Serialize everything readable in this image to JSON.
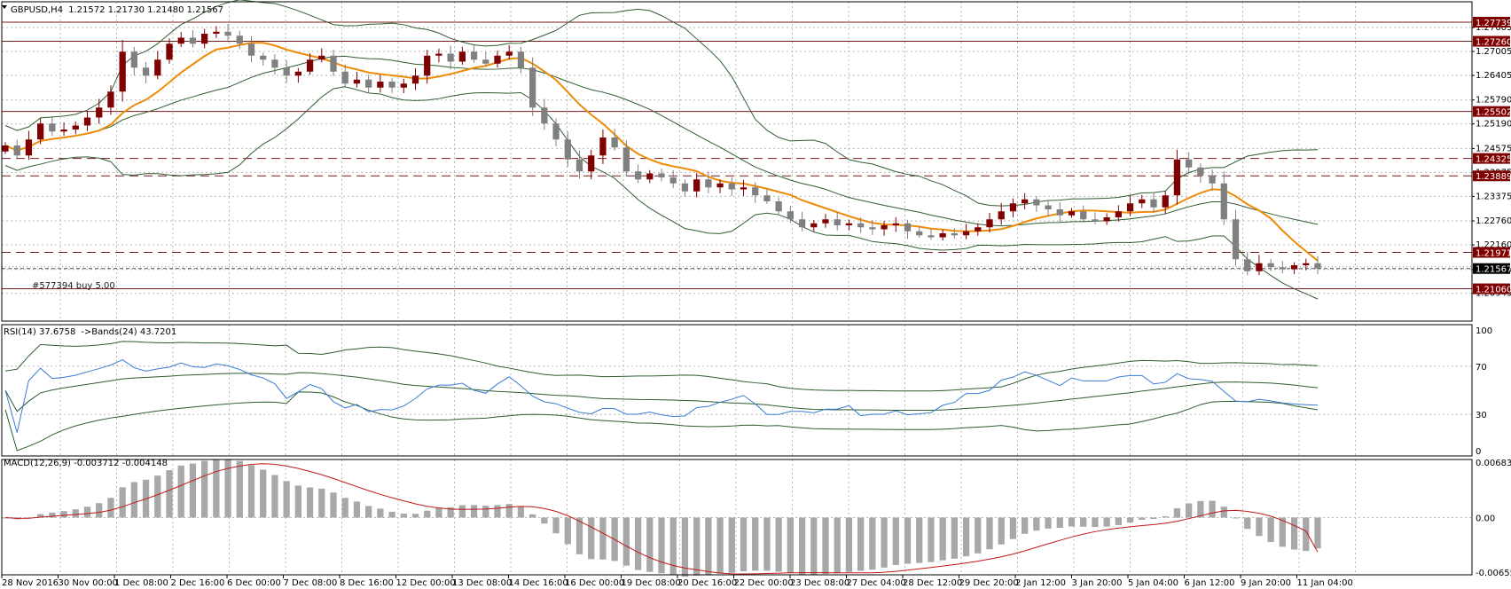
{
  "title": "GBPUSD,H4",
  "ohlc": "1.21572 1.21730 1.21480 1.21567",
  "order_label": "#577394 buy 5.00",
  "rsi_title": "RSI(14) 37.6758",
  "rsi_bands_title": "->Bands(24) 43.7201",
  "macd_title": "MACD(12,26,9) -0.003712 -0.004148",
  "colors": {
    "bull": "#800000",
    "bear": "#808080",
    "ma": "#ee8c0a",
    "bands": "#2f5d2f",
    "rsi": "#3a7bd5",
    "signal": "#c01818",
    "hist": "#a8a8a8",
    "level": "#7a1b1b",
    "tag_bg": "#800000",
    "grid": "#b8b8b8"
  },
  "chart_data": [
    {
      "type": "candlestick",
      "symbol": "GBPUSD",
      "timeframe": "H4",
      "ylim": [
        1.2025,
        1.2825
      ],
      "y_ticks": [
        "1.27605",
        "1.27005",
        "1.26405",
        "1.25790",
        "1.25190",
        "1.24575",
        "1.23975",
        "1.23375",
        "1.22760",
        "1.22160",
        "1.21545",
        "1.20945"
      ],
      "x_labels": [
        "28 Nov 2016",
        "30 Nov 00:00",
        "1 Dec 08:00",
        "2 Dec 16:00",
        "6 Dec 00:00",
        "7 Dec 08:00",
        "8 Dec 16:00",
        "12 Dec 00:00",
        "13 Dec 08:00",
        "14 Dec 16:00",
        "16 Dec 00:00",
        "19 Dec 08:00",
        "20 Dec 16:00",
        "22 Dec 00:00",
        "23 Dec 08:00",
        "27 Dec 04:00",
        "28 Dec 12:00",
        "29 Dec 20:00",
        "2 Jan 12:00",
        "3 Jan 20:00",
        "5 Jan 04:00",
        "6 Jan 12:00",
        "9 Jan 20:00",
        "11 Jan 04:00"
      ],
      "solid_levels": [
        {
          "label": "1.27739",
          "value": 1.27739
        },
        {
          "label": "1.27260",
          "value": 1.2726
        },
        {
          "label": "1.25502",
          "value": 1.25502
        },
        {
          "label": "1.21060",
          "value": 1.2106
        }
      ],
      "dashed_levels": [
        {
          "label": "1.24325",
          "value": 1.24325
        },
        {
          "label": "1.23889",
          "value": 1.23889
        },
        {
          "label": "1.21971",
          "value": 1.21971
        }
      ],
      "current_price": {
        "label": "1.21567",
        "value": 1.21567
      },
      "closes": [
        1.2465,
        1.244,
        1.248,
        1.252,
        1.25,
        1.2505,
        1.2515,
        1.2535,
        1.256,
        1.26,
        1.27,
        1.266,
        1.264,
        1.268,
        1.272,
        1.2735,
        1.272,
        1.2745,
        1.275,
        1.274,
        1.272,
        1.269,
        1.268,
        1.266,
        1.264,
        1.265,
        1.268,
        1.269,
        1.265,
        1.262,
        1.263,
        1.261,
        1.2625,
        1.261,
        1.262,
        1.264,
        1.269,
        1.2695,
        1.2675,
        1.27,
        1.268,
        1.267,
        1.269,
        1.27,
        1.266,
        1.256,
        1.252,
        1.248,
        1.243,
        1.24,
        1.244,
        1.2485,
        1.246,
        1.24,
        1.238,
        1.2395,
        1.2385,
        1.237,
        1.235,
        1.238,
        1.236,
        1.237,
        1.2355,
        1.236,
        1.234,
        1.2325,
        1.23,
        1.228,
        1.226,
        1.227,
        1.228,
        1.2265,
        1.227,
        1.226,
        1.2255,
        1.2265,
        1.227,
        1.225,
        1.224,
        1.2235,
        1.2245,
        1.224,
        1.225,
        1.226,
        1.228,
        1.23,
        1.232,
        1.233,
        1.2315,
        1.2305,
        1.229,
        1.23,
        1.228,
        1.2275,
        1.2285,
        1.23,
        1.232,
        1.233,
        1.231,
        1.234,
        1.243,
        1.241,
        1.239,
        1.237,
        1.228,
        1.218,
        1.215,
        1.217,
        1.216,
        1.2155,
        1.2165,
        1.217,
        1.21567
      ],
      "rsi": {
        "ylim": [
          0,
          100
        ],
        "ticks": [
          "100",
          "70",
          "30",
          "0"
        ],
        "current": 37.6758,
        "band_mid": 43.7201
      },
      "macd": {
        "ticks": [
          "0.006834",
          "0.00",
          "-0.006553"
        ],
        "main": -0.003712,
        "signal": -0.004148,
        "ylim": [
          -0.0069,
          0.007
        ]
      }
    }
  ]
}
